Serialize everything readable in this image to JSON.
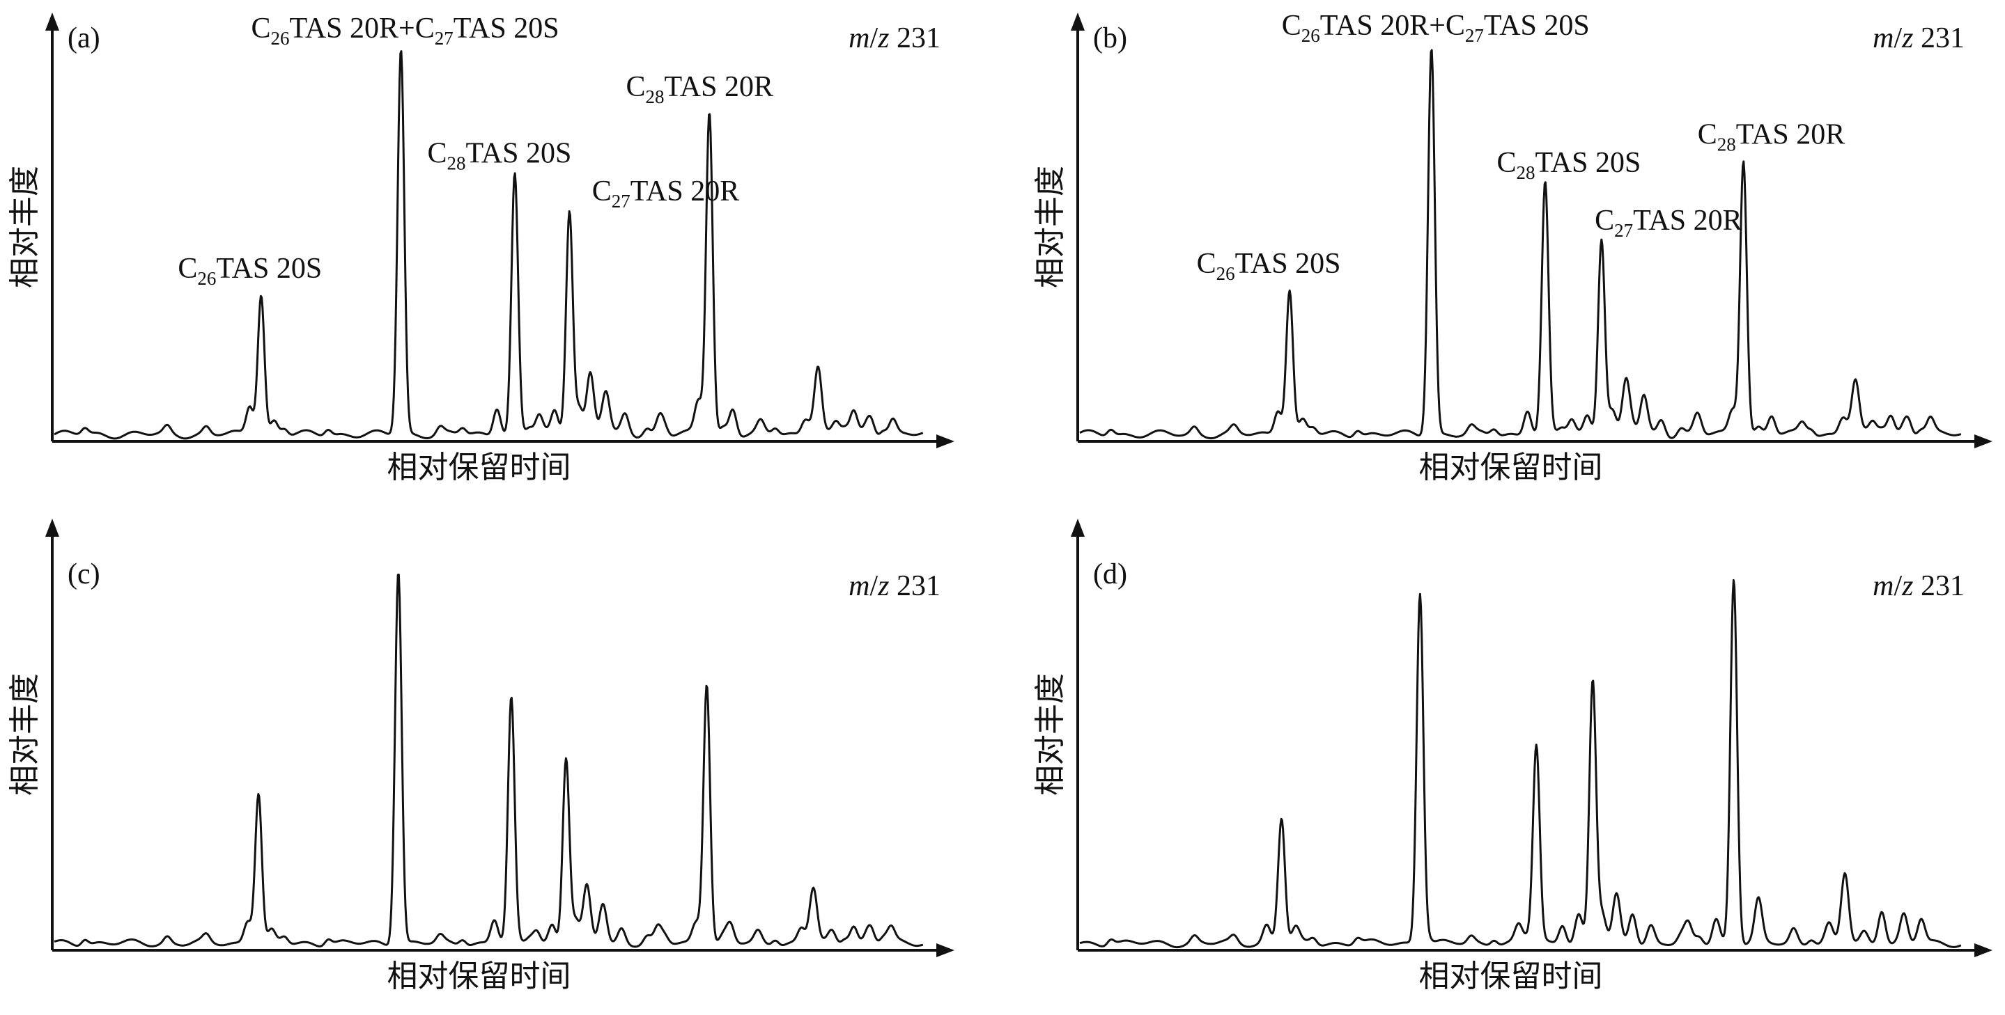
{
  "figure": {
    "ylabel": "相对丰度",
    "xlabel": "相对保留时间"
  },
  "chart_data": [
    {
      "type": "line",
      "panel_label": "(a)",
      "ion_label": {
        "m": "m",
        "slash": "/",
        "z": "z",
        "value": "231"
      },
      "xlabel": "相对保留时间",
      "ylabel": "相对丰度",
      "xlim": [
        0,
        1
      ],
      "ylim": [
        0,
        1
      ],
      "baseline_bumps": [
        0.035,
        0.13,
        0.175,
        0.225,
        0.265,
        0.315,
        0.395,
        0.444,
        0.47,
        0.508,
        0.547,
        0.59,
        0.628,
        0.682,
        0.703,
        0.743,
        0.77,
        0.83,
        0.87,
        0.91,
        0.935,
        0.954
      ],
      "peaks": [
        {
          "x": 0.238,
          "y": 0.37,
          "label": {
            "pre": "C",
            "sub": "26",
            "post": "TAS 20S"
          }
        },
        {
          "x": 0.399,
          "y": 1.0,
          "label": {
            "pre": "C",
            "sub": "26",
            "mid": "TAS 20R+C",
            "sub2": "27",
            "post": "TAS 20S"
          }
        },
        {
          "x": 0.53,
          "y": 0.68,
          "label": {
            "pre": "C",
            "sub": "28",
            "post": "TAS 20S"
          }
        },
        {
          "x": 0.593,
          "y": 0.58,
          "label": {
            "pre": "C",
            "sub": "27",
            "post": "TAS 20R"
          }
        },
        {
          "x": 0.754,
          "y": 0.85,
          "label": {
            "pre": "C",
            "sub": "28",
            "post": "TAS 20R"
          }
        },
        {
          "x": 0.225,
          "y": 0.06
        },
        {
          "x": 0.253,
          "y": 0.035
        },
        {
          "x": 0.51,
          "y": 0.06
        },
        {
          "x": 0.558,
          "y": 0.05
        },
        {
          "x": 0.576,
          "y": 0.06
        },
        {
          "x": 0.604,
          "y": 0.07
        },
        {
          "x": 0.617,
          "y": 0.16
        },
        {
          "x": 0.635,
          "y": 0.11
        },
        {
          "x": 0.657,
          "y": 0.05
        },
        {
          "x": 0.697,
          "y": 0.05
        },
        {
          "x": 0.741,
          "y": 0.07
        },
        {
          "x": 0.781,
          "y": 0.07
        },
        {
          "x": 0.813,
          "y": 0.03
        },
        {
          "x": 0.864,
          "y": 0.04
        },
        {
          "x": 0.879,
          "y": 0.18
        },
        {
          "x": 0.9,
          "y": 0.03
        },
        {
          "x": 0.92,
          "y": 0.06
        },
        {
          "x": 0.94,
          "y": 0.04
        },
        {
          "x": 0.965,
          "y": 0.04
        }
      ]
    },
    {
      "type": "line",
      "panel_label": "(b)",
      "ion_label": {
        "m": "m",
        "slash": "/",
        "z": "z",
        "value": "231"
      },
      "xlabel": "相对保留时间",
      "ylabel": "相对丰度",
      "xlim": [
        0,
        1
      ],
      "ylim": [
        0,
        1
      ],
      "baseline_bumps": [
        0.035,
        0.13,
        0.175,
        0.225,
        0.265,
        0.315,
        0.395,
        0.444,
        0.47,
        0.508,
        0.547,
        0.59,
        0.628,
        0.682,
        0.703,
        0.743,
        0.77,
        0.83,
        0.87,
        0.91,
        0.935,
        0.954
      ],
      "peaks": [
        {
          "x": 0.238,
          "y": 0.38,
          "label": {
            "pre": "C",
            "sub": "26",
            "post": "TAS 20S"
          }
        },
        {
          "x": 0.399,
          "y": 1.0,
          "label": {
            "pre": "C",
            "sub": "26",
            "mid": "TAS 20R+C",
            "sub2": "27",
            "post": "TAS 20S"
          }
        },
        {
          "x": 0.528,
          "y": 0.65,
          "label": {
            "pre": "C",
            "sub": "28",
            "post": "TAS 20S"
          }
        },
        {
          "x": 0.592,
          "y": 0.5,
          "label": {
            "pre": "C",
            "sub": "27",
            "post": "TAS 20R"
          }
        },
        {
          "x": 0.753,
          "y": 0.72,
          "label": {
            "pre": "C",
            "sub": "28",
            "post": "TAS 20R"
          }
        },
        {
          "x": 0.225,
          "y": 0.05
        },
        {
          "x": 0.253,
          "y": 0.035
        },
        {
          "x": 0.508,
          "y": 0.05
        },
        {
          "x": 0.558,
          "y": 0.04
        },
        {
          "x": 0.576,
          "y": 0.05
        },
        {
          "x": 0.604,
          "y": 0.06
        },
        {
          "x": 0.62,
          "y": 0.14
        },
        {
          "x": 0.64,
          "y": 0.1
        },
        {
          "x": 0.66,
          "y": 0.04
        },
        {
          "x": 0.7,
          "y": 0.04
        },
        {
          "x": 0.74,
          "y": 0.05
        },
        {
          "x": 0.785,
          "y": 0.05
        },
        {
          "x": 0.82,
          "y": 0.03
        },
        {
          "x": 0.865,
          "y": 0.04
        },
        {
          "x": 0.88,
          "y": 0.14
        },
        {
          "x": 0.9,
          "y": 0.03
        },
        {
          "x": 0.92,
          "y": 0.05
        },
        {
          "x": 0.94,
          "y": 0.04
        },
        {
          "x": 0.965,
          "y": 0.04
        }
      ]
    },
    {
      "type": "line",
      "panel_label": "(c)",
      "ion_label": {
        "m": "m",
        "slash": "/",
        "z": "z",
        "value": "231"
      },
      "xlabel": "相对保留时间",
      "ylabel": "相对丰度",
      "xlim": [
        0,
        1
      ],
      "ylim": [
        0,
        1
      ],
      "baseline_bumps": [
        0.035,
        0.13,
        0.175,
        0.225,
        0.265,
        0.315,
        0.395,
        0.444,
        0.47,
        0.508,
        0.547,
        0.59,
        0.628,
        0.682,
        0.703,
        0.743,
        0.77,
        0.83,
        0.87,
        0.91,
        0.935,
        0.954
      ],
      "peaks": [
        {
          "x": 0.235,
          "y": 0.41
        },
        {
          "x": 0.396,
          "y": 1.0
        },
        {
          "x": 0.526,
          "y": 0.66
        },
        {
          "x": 0.589,
          "y": 0.49
        },
        {
          "x": 0.751,
          "y": 0.71
        },
        {
          "x": 0.222,
          "y": 0.05
        },
        {
          "x": 0.25,
          "y": 0.03
        },
        {
          "x": 0.506,
          "y": 0.05
        },
        {
          "x": 0.555,
          "y": 0.04
        },
        {
          "x": 0.573,
          "y": 0.05
        },
        {
          "x": 0.6,
          "y": 0.06
        },
        {
          "x": 0.613,
          "y": 0.15
        },
        {
          "x": 0.632,
          "y": 0.1
        },
        {
          "x": 0.653,
          "y": 0.04
        },
        {
          "x": 0.695,
          "y": 0.04
        },
        {
          "x": 0.738,
          "y": 0.05
        },
        {
          "x": 0.778,
          "y": 0.05
        },
        {
          "x": 0.81,
          "y": 0.03
        },
        {
          "x": 0.86,
          "y": 0.04
        },
        {
          "x": 0.874,
          "y": 0.14
        },
        {
          "x": 0.895,
          "y": 0.03
        },
        {
          "x": 0.92,
          "y": 0.05
        },
        {
          "x": 0.94,
          "y": 0.04
        },
        {
          "x": 0.963,
          "y": 0.04
        }
      ]
    },
    {
      "type": "line",
      "panel_label": "(d)",
      "ion_label": {
        "m": "m",
        "slash": "/",
        "z": "z",
        "value": "231"
      },
      "xlabel": "相对保留时间",
      "ylabel": "相对丰度",
      "xlim": [
        0,
        1
      ],
      "ylim": [
        0,
        1
      ],
      "baseline_bumps": [
        0.035,
        0.13,
        0.175,
        0.225,
        0.265,
        0.315,
        0.395,
        0.444,
        0.47,
        0.508,
        0.547,
        0.59,
        0.628,
        0.682,
        0.703,
        0.743,
        0.77,
        0.83,
        0.87,
        0.91,
        0.935,
        0.954
      ],
      "peaks": [
        {
          "x": 0.229,
          "y": 0.34
        },
        {
          "x": 0.386,
          "y": 0.98
        },
        {
          "x": 0.518,
          "y": 0.55
        },
        {
          "x": 0.582,
          "y": 0.73
        },
        {
          "x": 0.742,
          "y": 1.0
        },
        {
          "x": 0.212,
          "y": 0.05
        },
        {
          "x": 0.245,
          "y": 0.04
        },
        {
          "x": 0.498,
          "y": 0.05
        },
        {
          "x": 0.548,
          "y": 0.04
        },
        {
          "x": 0.566,
          "y": 0.08
        },
        {
          "x": 0.593,
          "y": 0.07
        },
        {
          "x": 0.609,
          "y": 0.13
        },
        {
          "x": 0.627,
          "y": 0.07
        },
        {
          "x": 0.648,
          "y": 0.05
        },
        {
          "x": 0.69,
          "y": 0.05
        },
        {
          "x": 0.722,
          "y": 0.07
        },
        {
          "x": 0.77,
          "y": 0.1
        },
        {
          "x": 0.81,
          "y": 0.04
        },
        {
          "x": 0.85,
          "y": 0.05
        },
        {
          "x": 0.868,
          "y": 0.18
        },
        {
          "x": 0.89,
          "y": 0.03
        },
        {
          "x": 0.91,
          "y": 0.08
        },
        {
          "x": 0.935,
          "y": 0.06
        },
        {
          "x": 0.955,
          "y": 0.05
        }
      ]
    }
  ]
}
